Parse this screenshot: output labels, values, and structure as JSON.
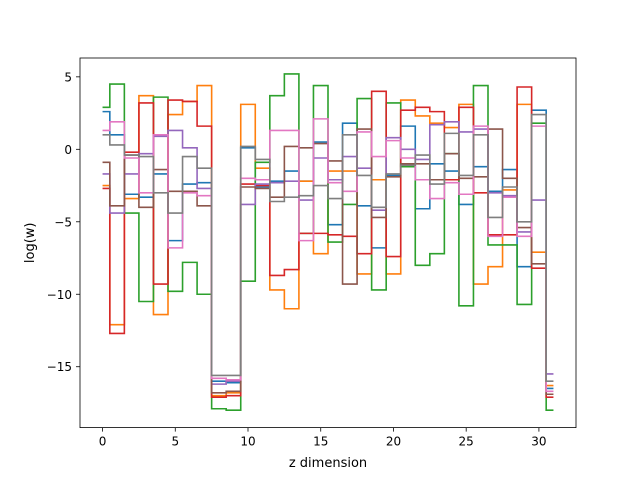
{
  "chart_data": {
    "type": "line",
    "style": "step",
    "title": "",
    "xlabel": "z dimension",
    "ylabel": "log(w)",
    "xlim": [
      -1.55,
      32.55
    ],
    "ylim": [
      -19.2,
      6.3
    ],
    "xticks": [
      0,
      5,
      10,
      15,
      20,
      25,
      30
    ],
    "yticks": [
      -15,
      -10,
      -5,
      0,
      5
    ],
    "grid": false,
    "legend": "none",
    "x": [
      0,
      1,
      2,
      3,
      4,
      5,
      6,
      7,
      8,
      9,
      10,
      11,
      12,
      13,
      14,
      15,
      16,
      17,
      18,
      19,
      20,
      21,
      22,
      23,
      24,
      25,
      26,
      27,
      28,
      29,
      30,
      31
    ],
    "series": [
      {
        "color": "#1f77b4",
        "values": [
          2.6,
          1.0,
          -3.1,
          -3.3,
          -1.7,
          -6.3,
          -2.4,
          -2.3,
          -16.0,
          -16.1,
          0.1,
          -2.6,
          -2.2,
          -1.5,
          -2.2,
          0.5,
          -5.2,
          1.8,
          -3.9,
          -6.8,
          -1.8,
          1.6,
          -4.1,
          -1.0,
          -1.5,
          -3.8,
          -1.2,
          -2.9,
          -1.4,
          -8.1,
          2.7,
          -16.5
        ]
      },
      {
        "color": "#ff7f0e",
        "values": [
          -2.5,
          -12.1,
          -3.4,
          3.7,
          -11.4,
          2.4,
          3.3,
          4.4,
          -17.0,
          -16.8,
          3.1,
          -1.3,
          -9.7,
          -11.0,
          -2.2,
          -7.2,
          -1.5,
          -1.5,
          -8.6,
          -2.1,
          -8.6,
          3.4,
          2.3,
          1.8,
          1.5,
          3.1,
          -9.3,
          -8.1,
          -2.8,
          3.1,
          -7.1,
          -16.3
        ]
      },
      {
        "color": "#2ca02c",
        "values": [
          2.9,
          4.5,
          -4.4,
          -10.5,
          3.6,
          -9.8,
          -7.8,
          -10.0,
          -17.9,
          -18.0,
          -9.1,
          -0.9,
          3.7,
          5.2,
          -5.8,
          4.4,
          -6.4,
          -3.8,
          3.5,
          -9.7,
          3.2,
          -1.2,
          -8.0,
          -7.2,
          -0.3,
          -10.8,
          4.4,
          -6.6,
          -6.6,
          -10.7,
          1.8,
          -18.0
        ]
      },
      {
        "color": "#d62728",
        "values": [
          -2.7,
          -12.7,
          -0.2,
          3.2,
          -9.3,
          3.4,
          3.3,
          1.6,
          -17.1,
          -17.0,
          -2.4,
          -2.5,
          -8.7,
          -8.3,
          -5.8,
          -5.8,
          -5.9,
          -6.0,
          -7.2,
          4.0,
          -7.4,
          2.7,
          2.9,
          2.6,
          -2.1,
          2.9,
          -3.0,
          -5.9,
          -5.9,
          4.3,
          -8.2,
          -17.1
        ]
      },
      {
        "color": "#9467bd",
        "values": [
          -1.7,
          -4.4,
          -1.7,
          -0.3,
          0.9,
          1.3,
          0.1,
          -2.7,
          -16.2,
          -16.0,
          -3.8,
          -2.4,
          -2.3,
          -2.2,
          -3.5,
          -0.6,
          -2.1,
          -0.5,
          -1.3,
          -4.2,
          0.8,
          0.0,
          -0.7,
          1.7,
          1.9,
          1.2,
          1.4,
          -3.0,
          -3.2,
          -5.7,
          -3.5,
          -15.5
        ]
      },
      {
        "color": "#8c564b",
        "values": [
          -0.9,
          -3.9,
          -0.4,
          -4.0,
          -1.4,
          -2.9,
          -2.9,
          -3.9,
          -16.8,
          -16.7,
          -2.6,
          -2.7,
          -3.3,
          0.2,
          0.1,
          0.4,
          -0.8,
          -9.3,
          1.4,
          -4.7,
          -1.9,
          -1.0,
          -1.0,
          -2.1,
          -0.3,
          -2.0,
          -1.9,
          1.4,
          -2.0,
          -5.4,
          -7.9,
          -16.9
        ]
      },
      {
        "color": "#e377c2",
        "values": [
          1.3,
          1.9,
          -0.6,
          -3.0,
          1.0,
          -6.8,
          -3.0,
          -3.2,
          -15.8,
          -15.9,
          -2.0,
          -2.1,
          1.3,
          1.3,
          -6.3,
          2.1,
          -2.3,
          -2.9,
          1.2,
          -0.5,
          0.6,
          -0.6,
          -2.1,
          -3.4,
          -2.3,
          -3.1,
          1.6,
          -6.0,
          -3.3,
          -6.0,
          1.6,
          -16.7
        ]
      },
      {
        "color": "#7f7f7f",
        "values": [
          1.0,
          0.3,
          -0.4,
          -0.5,
          -3.0,
          -4.4,
          -0.5,
          -1.3,
          -15.6,
          -15.6,
          0.2,
          -0.7,
          -3.6,
          -3.3,
          -3.2,
          -2.5,
          -3.4,
          1.0,
          -1.8,
          -4.0,
          -1.7,
          -1.1,
          -0.4,
          -2.4,
          1.1,
          -1.8,
          1.0,
          -4.7,
          -2.6,
          -5.0,
          2.4,
          -16.0
        ]
      }
    ]
  }
}
